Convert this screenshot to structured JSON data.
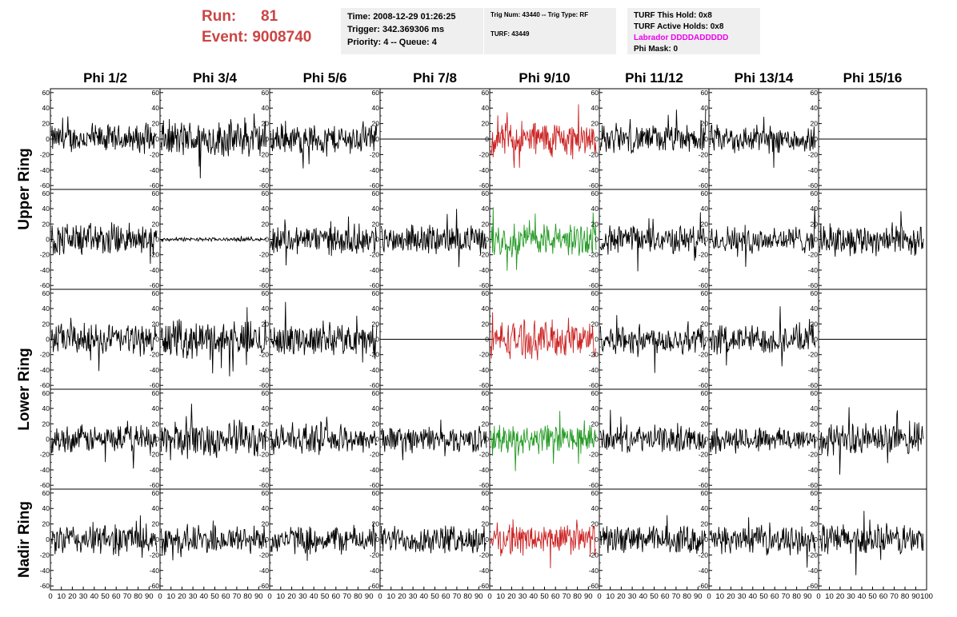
{
  "header": {
    "run_label": "Run:",
    "run_value": "81",
    "event_label": "Event:",
    "event_value": "9008740",
    "time": "Time: 2008-12-29 01:26:25",
    "trigger": "Trigger: 342.369306 ms",
    "priority": "Priority: 4 -- Queue: 4",
    "trig_num": "Trig Num: 43440 -- Trig Type: RF",
    "turf": "TURF: 43449",
    "turf_hold": "TURF This Hold: 0x8",
    "turf_active": "TURF Active Holds: 0x8",
    "labrador": "Labrador DDDDADDDDD",
    "phi_mask": "Phi Mask: 0"
  },
  "colors": {
    "red_accent": "#cc4444",
    "trace_black": "#000000",
    "trace_red": "#cc2222",
    "trace_green": "#229922",
    "labrador": "#ee00ee",
    "panel_bg": "#efefef"
  },
  "chart_data": {
    "type": "line",
    "columns": [
      "Phi 1/2",
      "Phi 3/4",
      "Phi 5/6",
      "Phi 7/8",
      "Phi 9/10",
      "Phi 11/12",
      "Phi 13/14",
      "Phi 15/16"
    ],
    "ring_labels": [
      "Upper Ring",
      "Lower Ring",
      "Nadir Ring"
    ],
    "xlim": [
      0,
      100
    ],
    "ylim": [
      -65,
      65
    ],
    "y_ticks": [
      -60,
      -40,
      -20,
      0,
      20,
      40,
      60
    ],
    "x_tick_labels": [
      "0",
      "10",
      "20",
      "30",
      "40",
      "50",
      "60",
      "70",
      "80",
      "90",
      "100"
    ],
    "grid": false,
    "rows": [
      [
        {
          "color": "black",
          "amp": 15
        },
        {
          "color": "black",
          "amp": 20
        },
        {
          "color": "black",
          "amp": 16
        },
        {
          "color": "black",
          "amp": 0
        },
        {
          "color": "red",
          "amp": 20
        },
        {
          "color": "black",
          "amp": 15
        },
        {
          "color": "black",
          "amp": 15
        },
        {
          "color": "black",
          "amp": 0
        }
      ],
      [
        {
          "color": "black",
          "amp": 18
        },
        {
          "color": "black",
          "amp": 2
        },
        {
          "color": "black",
          "amp": 16
        },
        {
          "color": "black",
          "amp": 15
        },
        {
          "color": "green",
          "amp": 18
        },
        {
          "color": "black",
          "amp": 15
        },
        {
          "color": "black",
          "amp": 15
        },
        {
          "color": "black",
          "amp": 17
        }
      ],
      [
        {
          "color": "black",
          "amp": 17
        },
        {
          "color": "black",
          "amp": 20
        },
        {
          "color": "black",
          "amp": 17
        },
        {
          "color": "black",
          "amp": 0
        },
        {
          "color": "red",
          "amp": 20
        },
        {
          "color": "black",
          "amp": 16
        },
        {
          "color": "black",
          "amp": 16
        },
        {
          "color": "black",
          "amp": 0
        }
      ],
      [
        {
          "color": "black",
          "amp": 15
        },
        {
          "color": "black",
          "amp": 20
        },
        {
          "color": "black",
          "amp": 15
        },
        {
          "color": "black",
          "amp": 14
        },
        {
          "color": "green",
          "amp": 16
        },
        {
          "color": "black",
          "amp": 14
        },
        {
          "color": "black",
          "amp": 14
        },
        {
          "color": "black",
          "amp": 17
        }
      ],
      [
        {
          "color": "black",
          "amp": 17
        },
        {
          "color": "black",
          "amp": 16
        },
        {
          "color": "black",
          "amp": 15
        },
        {
          "color": "black",
          "amp": 15
        },
        {
          "color": "red",
          "amp": 17
        },
        {
          "color": "black",
          "amp": 15
        },
        {
          "color": "black",
          "amp": 14
        },
        {
          "color": "black",
          "amp": 17
        }
      ]
    ]
  }
}
